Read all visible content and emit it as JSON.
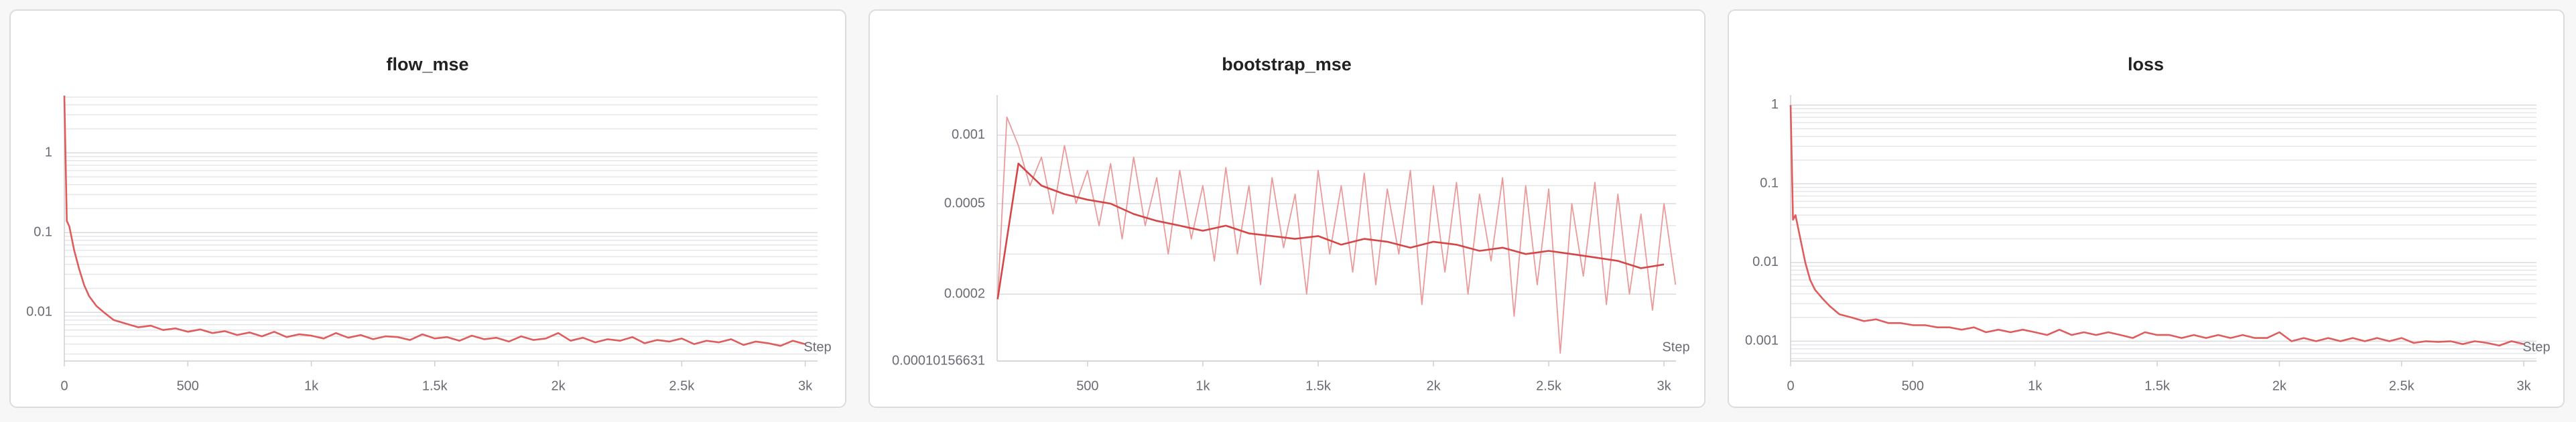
{
  "chart_data": [
    {
      "type": "line",
      "title": "flow_mse",
      "x_label": "Step",
      "yscale": "log",
      "grid": true,
      "xlim": [
        0,
        3050
      ],
      "xticks": [
        0,
        500,
        {
          "value": 1000,
          "label": "1k"
        },
        {
          "value": 1500,
          "label": "1.5k"
        },
        {
          "value": 2000,
          "label": "2k"
        },
        {
          "value": 2500,
          "label": "2.5k"
        },
        {
          "value": 3000,
          "label": "3k"
        }
      ],
      "ylim": [
        0.00245,
        5.3
      ],
      "yticks": [
        0.01,
        0.1,
        1
      ],
      "minor_yticks": [
        0.003,
        0.004,
        0.005,
        0.006,
        0.007,
        0.008,
        0.009,
        0.02,
        0.03,
        0.04,
        0.05,
        0.06,
        0.07,
        0.08,
        0.09,
        0.2,
        0.3,
        0.4,
        0.5,
        0.6,
        0.7,
        0.8,
        0.9,
        2,
        3,
        4,
        5
      ],
      "series": [
        {
          "color": "#e05c5c",
          "x": [
            0,
            10,
            20,
            40,
            60,
            80,
            100,
            130,
            160,
            200,
            250,
            300,
            350,
            400,
            450,
            500,
            550,
            600,
            650,
            700,
            750,
            800,
            850,
            900,
            950,
            1000,
            1050,
            1100,
            1150,
            1200,
            1250,
            1300,
            1350,
            1400,
            1450,
            1500,
            1550,
            1600,
            1650,
            1700,
            1750,
            1800,
            1850,
            1900,
            1950,
            2000,
            2050,
            2100,
            2150,
            2200,
            2250,
            2300,
            2350,
            2400,
            2450,
            2500,
            2550,
            2600,
            2650,
            2700,
            2750,
            2800,
            2850,
            2900,
            2950,
            3000
          ],
          "values": [
            5.2,
            0.14,
            0.12,
            0.06,
            0.035,
            0.022,
            0.016,
            0.012,
            0.01,
            0.008,
            0.0072,
            0.0065,
            0.0068,
            0.006,
            0.0063,
            0.0057,
            0.0061,
            0.0055,
            0.0058,
            0.0052,
            0.0056,
            0.005,
            0.0057,
            0.0049,
            0.0053,
            0.0051,
            0.0047,
            0.0055,
            0.0048,
            0.0052,
            0.0046,
            0.005,
            0.0049,
            0.0045,
            0.0053,
            0.0047,
            0.0049,
            0.0044,
            0.0051,
            0.0046,
            0.0048,
            0.0043,
            0.005,
            0.0045,
            0.0047,
            0.0055,
            0.0044,
            0.0048,
            0.0042,
            0.0046,
            0.0044,
            0.0049,
            0.0041,
            0.0045,
            0.0043,
            0.0047,
            0.004,
            0.0044,
            0.0042,
            0.0046,
            0.0039,
            0.0043,
            0.0041,
            0.0038,
            0.0044,
            0.004
          ]
        }
      ]
    },
    {
      "type": "line",
      "title": "bootstrap_mse",
      "x_label": "Step",
      "yscale": "log",
      "grid": true,
      "xlim": [
        108,
        3052
      ],
      "xticks": [
        500,
        {
          "value": 1000,
          "label": "1k"
        },
        {
          "value": 1500,
          "label": "1.5k"
        },
        {
          "value": 2000,
          "label": "2k"
        },
        {
          "value": 2500,
          "label": "2.5k"
        },
        {
          "value": 3000,
          "label": "3k"
        }
      ],
      "ylim": [
        0.00010156631,
        0.0015
      ],
      "yticks": [
        0.00010156631,
        0.0002,
        0.0005,
        0.001
      ],
      "minor_yticks": [
        0.0003,
        0.0004,
        0.0006,
        0.0007,
        0.0008,
        0.0009
      ],
      "series": [
        {
          "color": "#eb9a9a",
          "x": [
            110,
            150,
            200,
            250,
            300,
            350,
            400,
            450,
            500,
            550,
            600,
            650,
            700,
            750,
            800,
            850,
            900,
            950,
            1000,
            1050,
            1100,
            1150,
            1200,
            1250,
            1300,
            1350,
            1400,
            1450,
            1500,
            1550,
            1600,
            1650,
            1700,
            1750,
            1800,
            1850,
            1900,
            1950,
            2000,
            2050,
            2100,
            2150,
            2200,
            2250,
            2300,
            2350,
            2400,
            2450,
            2500,
            2550,
            2600,
            2650,
            2700,
            2750,
            2800,
            2850,
            2900,
            2950,
            3000,
            3050
          ],
          "values": [
            0.00019,
            0.0012,
            0.0009,
            0.0006,
            0.0008,
            0.00045,
            0.0009,
            0.0005,
            0.0007,
            0.0004,
            0.00075,
            0.00035,
            0.0008,
            0.0004,
            0.00065,
            0.0003,
            0.0007,
            0.00035,
            0.0006,
            0.00028,
            0.00072,
            0.0003,
            0.0006,
            0.00022,
            0.00065,
            0.00032,
            0.00055,
            0.0002,
            0.0007,
            0.0003,
            0.0006,
            0.00025,
            0.00068,
            0.00022,
            0.00058,
            0.0003,
            0.0007,
            0.00018,
            0.0006,
            0.00025,
            0.00062,
            0.0002,
            0.00055,
            0.00028,
            0.00065,
            0.00016,
            0.0006,
            0.00022,
            0.00058,
            0.00011,
            0.0005,
            0.00024,
            0.00062,
            0.00018,
            0.00055,
            0.0002,
            0.00045,
            0.00017,
            0.0005,
            0.00022
          ]
        },
        {
          "color": "#d64545",
          "x": [
            110,
            200,
            300,
            400,
            500,
            600,
            700,
            800,
            900,
            1000,
            1100,
            1200,
            1300,
            1400,
            1500,
            1600,
            1700,
            1800,
            1900,
            2000,
            2100,
            2200,
            2300,
            2400,
            2500,
            2600,
            2700,
            2800,
            2900,
            3000
          ],
          "values": [
            0.00019,
            0.00075,
            0.0006,
            0.00055,
            0.00052,
            0.0005,
            0.00045,
            0.00042,
            0.0004,
            0.00038,
            0.0004,
            0.00037,
            0.00036,
            0.00035,
            0.00036,
            0.00033,
            0.00035,
            0.00034,
            0.00032,
            0.00034,
            0.00033,
            0.00031,
            0.00032,
            0.0003,
            0.00031,
            0.0003,
            0.00029,
            0.00028,
            0.00026,
            0.00027
          ]
        }
      ]
    },
    {
      "type": "line",
      "title": "loss",
      "x_label": "Step",
      "yscale": "log",
      "grid": true,
      "xlim": [
        0,
        3052
      ],
      "xticks": [
        0,
        500,
        {
          "value": 1000,
          "label": "1k"
        },
        {
          "value": 1500,
          "label": "1.5k"
        },
        {
          "value": 2000,
          "label": "2k"
        },
        {
          "value": 2500,
          "label": "2.5k"
        },
        {
          "value": 3000,
          "label": "3k"
        }
      ],
      "ylim": [
        0.00056,
        1.34
      ],
      "yticks": [
        0.001,
        0.01,
        0.1,
        1
      ],
      "minor_yticks": [
        0.0006,
        0.0007,
        0.0008,
        0.0009,
        0.002,
        0.003,
        0.004,
        0.005,
        0.006,
        0.007,
        0.008,
        0.009,
        0.02,
        0.03,
        0.04,
        0.05,
        0.06,
        0.07,
        0.08,
        0.09,
        0.2,
        0.3,
        0.4,
        0.5,
        0.6,
        0.7,
        0.8,
        0.9
      ],
      "series": [
        {
          "color": "#e05c5c",
          "x": [
            0,
            10,
            20,
            40,
            60,
            80,
            100,
            130,
            160,
            200,
            250,
            300,
            350,
            400,
            450,
            500,
            550,
            600,
            650,
            700,
            750,
            800,
            850,
            900,
            950,
            1000,
            1050,
            1100,
            1150,
            1200,
            1250,
            1300,
            1350,
            1400,
            1450,
            1500,
            1550,
            1600,
            1650,
            1700,
            1750,
            1800,
            1850,
            1900,
            1950,
            2000,
            2050,
            2100,
            2150,
            2200,
            2250,
            2300,
            2350,
            2400,
            2450,
            2500,
            2550,
            2600,
            2650,
            2700,
            2750,
            2800,
            2850,
            2900,
            2950,
            3000
          ],
          "values": [
            1.0,
            0.035,
            0.04,
            0.02,
            0.01,
            0.006,
            0.0045,
            0.0035,
            0.0028,
            0.0022,
            0.002,
            0.0018,
            0.0019,
            0.0017,
            0.0017,
            0.0016,
            0.0016,
            0.0015,
            0.0015,
            0.0014,
            0.0015,
            0.0013,
            0.0014,
            0.0013,
            0.0014,
            0.0013,
            0.0012,
            0.0014,
            0.0012,
            0.0013,
            0.0012,
            0.0013,
            0.0012,
            0.0011,
            0.0013,
            0.0012,
            0.0012,
            0.0011,
            0.0012,
            0.0011,
            0.0012,
            0.0011,
            0.0012,
            0.0011,
            0.0011,
            0.0013,
            0.001,
            0.0011,
            0.001,
            0.0011,
            0.001,
            0.0011,
            0.001,
            0.0011,
            0.001,
            0.0011,
            0.00095,
            0.001,
            0.00098,
            0.001,
            0.00092,
            0.001,
            0.00095,
            0.00088,
            0.001,
            0.00092
          ]
        }
      ]
    }
  ]
}
